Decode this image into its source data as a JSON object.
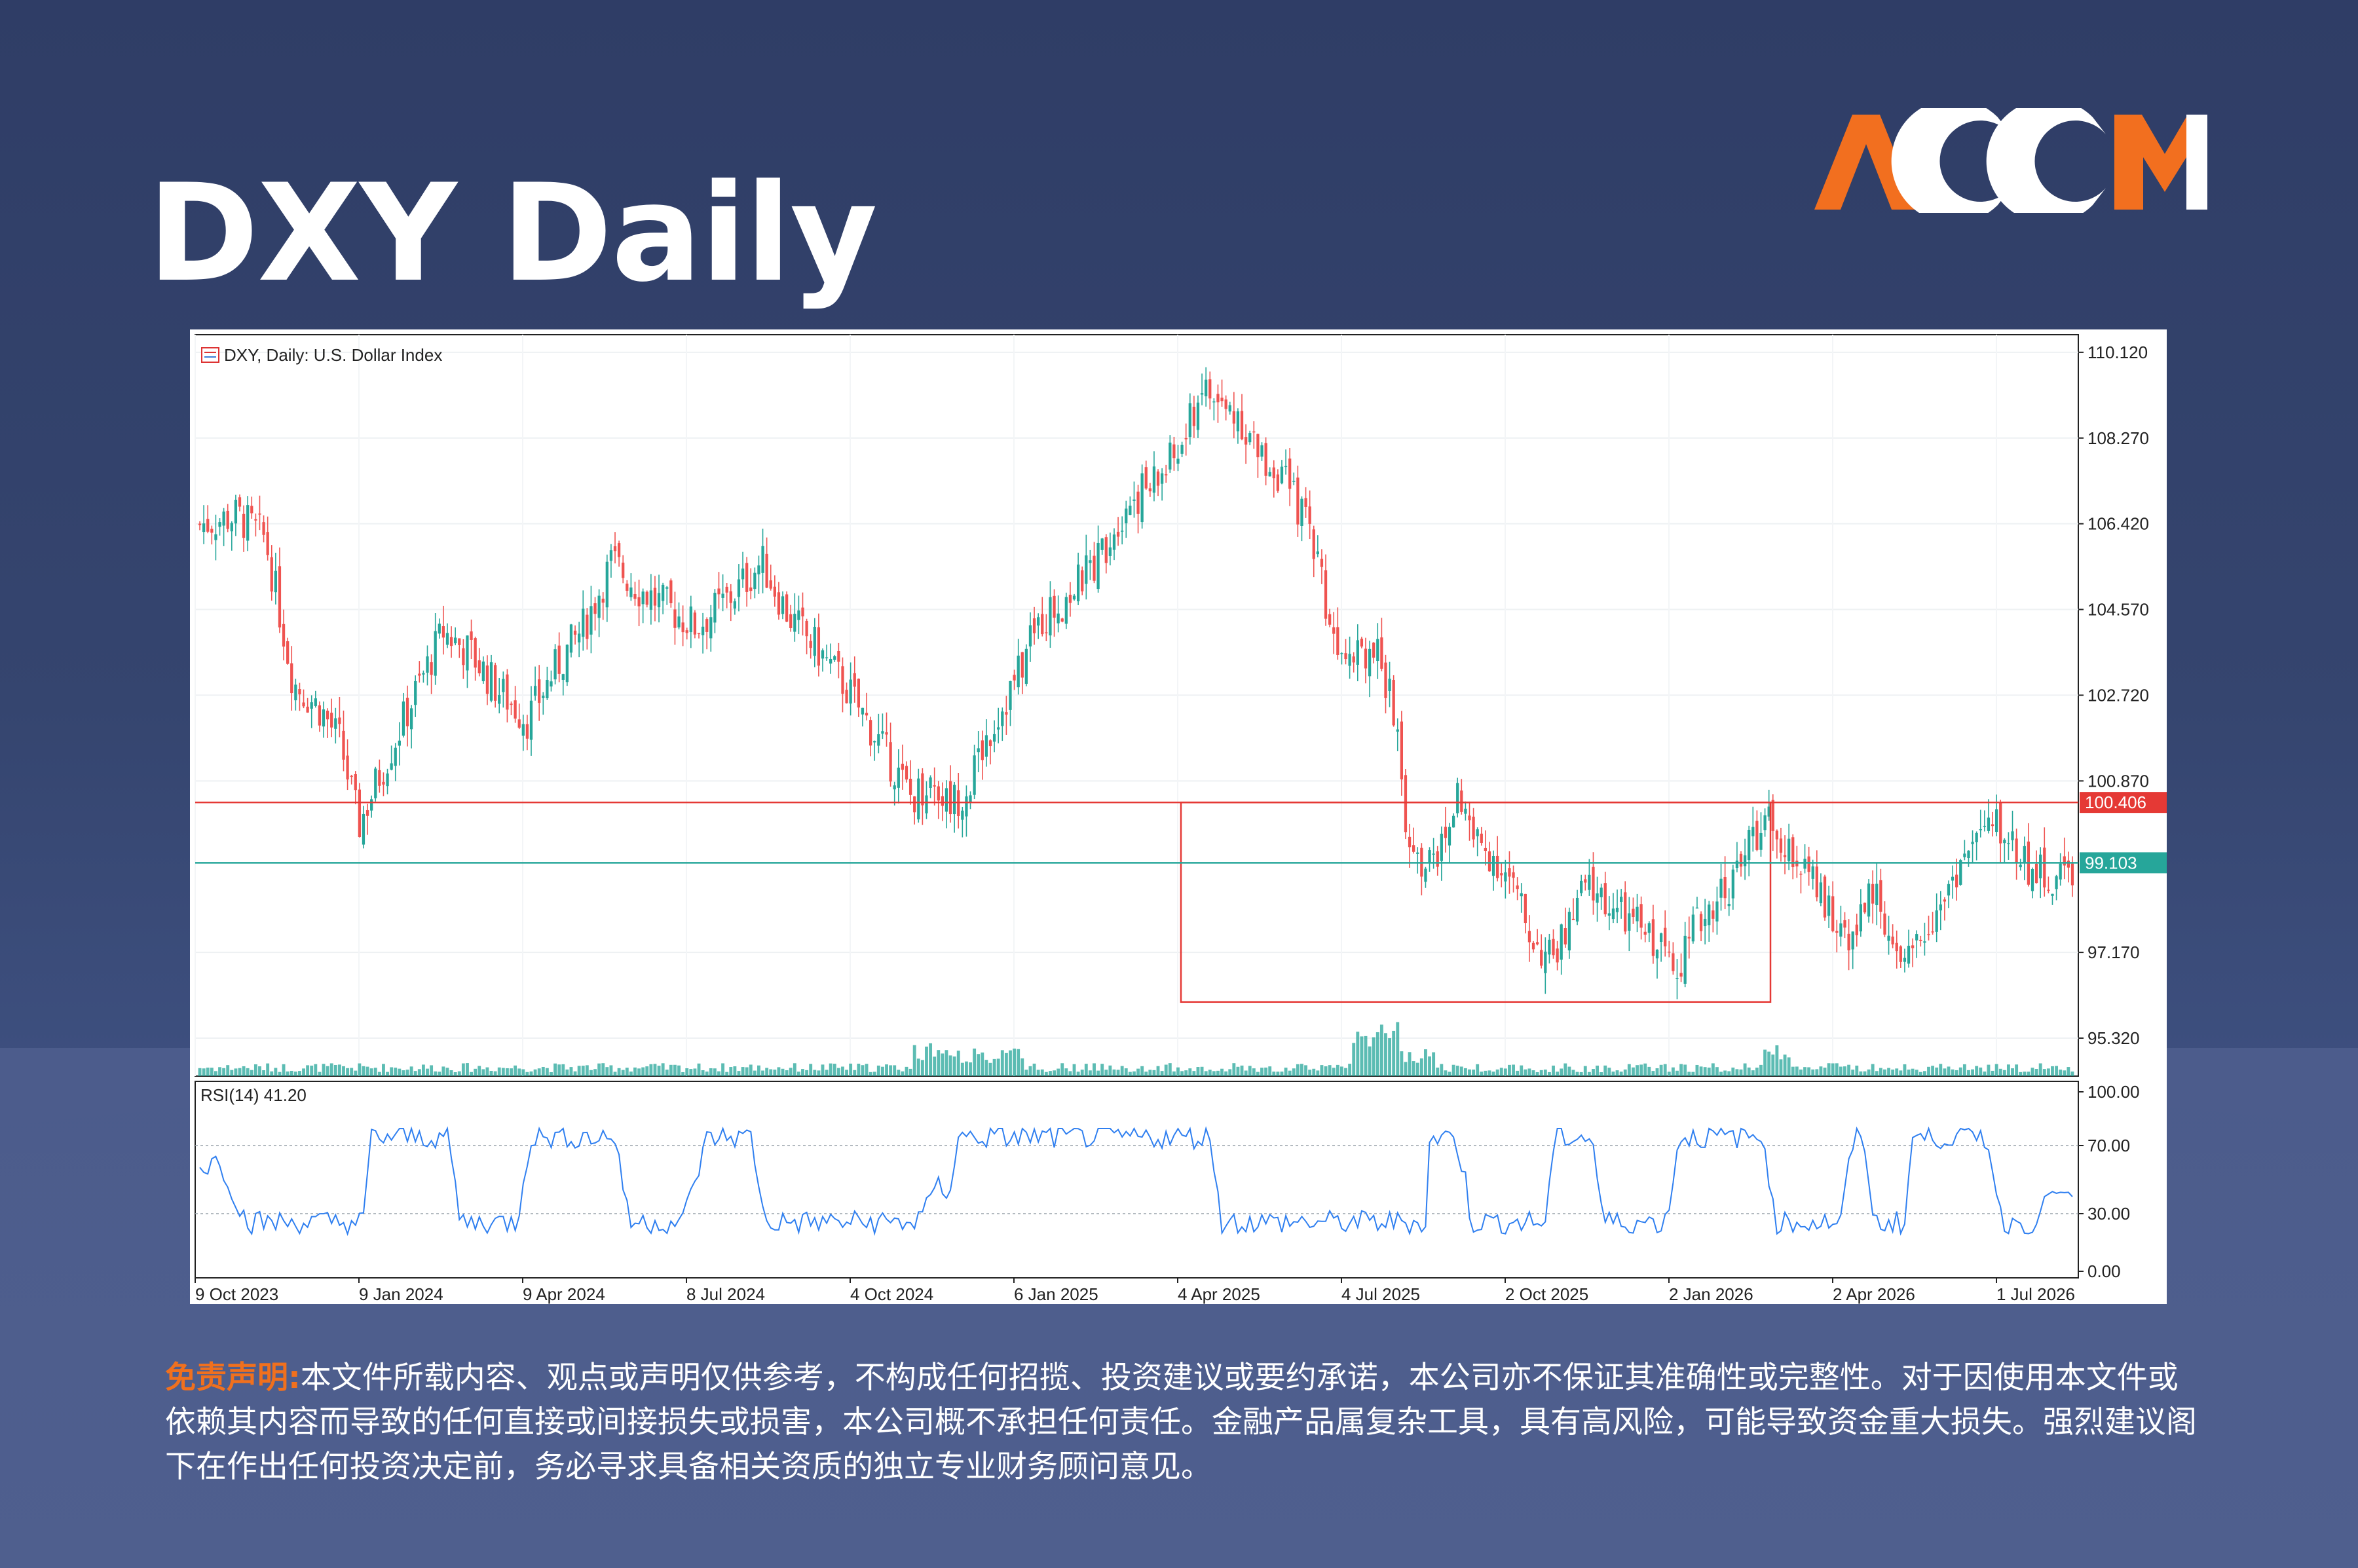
{
  "page": {
    "title": "DXY Daily",
    "logo_text": "ACCM",
    "colors": {
      "background": "#34446f",
      "logo_orange": "#f26f1f",
      "logo_white": "#ffffff",
      "disclaimer_label": "#f0701e"
    }
  },
  "disclaimer": {
    "label": "免责声明:",
    "text": "本文件所载内容、观点或声明仅供参考，不构成任何招揽、投资建议或要约承诺，本公司亦不保证其准确性或完整性。对于因使用本文件或依赖其内容而导致的任何直接或间接损失或损害，本公司概不承担任何责任。金融产品属复杂工具，具有高风险，可能导致资金重大损失。强烈建议阁下在作出任何投资决定前，务必寻求具备相关资质的独立专业财务顾问意见。"
  },
  "chart_data": {
    "type": "candlestick",
    "title": "DXY, Daily:  U.S. Dollar Index",
    "price_axis": {
      "ticks": [
        "110.120",
        "108.270",
        "106.420",
        "104.570",
        "102.720",
        "100.870",
        "97.170",
        "95.320"
      ],
      "ylim": [
        94.5,
        110.5
      ]
    },
    "time_axis": [
      "9 Oct 2023",
      "9 Jan 2024",
      "9 Apr 2024",
      "8 Jul 2024",
      "4 Oct 2024",
      "6 Jan 2025",
      "4 Apr 2025",
      "4 Jul 2025",
      "2 Oct 2025",
      "2 Jan 2026",
      "2 Apr 2026",
      "1 Jul 2026"
    ],
    "colors": {
      "up": "#26a69a",
      "down": "#ef5350",
      "volume": "#26a69a",
      "rsi": "#2f7ff0",
      "resistance": "#e53935",
      "current": "#26a69a",
      "grid": "#e8ecef"
    },
    "close_path": [
      [
        0,
        106.4
      ],
      [
        0.02,
        106.6
      ],
      [
        0.035,
        106.1
      ],
      [
        0.05,
        103.0
      ],
      [
        0.065,
        102.4
      ],
      [
        0.075,
        101.7
      ],
      [
        0.085,
        99.9
      ],
      [
        0.095,
        100.9
      ],
      [
        0.11,
        102.3
      ],
      [
        0.13,
        104.1
      ],
      [
        0.145,
        103.6
      ],
      [
        0.16,
        102.8
      ],
      [
        0.175,
        102.2
      ],
      [
        0.19,
        103.3
      ],
      [
        0.205,
        104.2
      ],
      [
        0.22,
        105.6
      ],
      [
        0.235,
        105.0
      ],
      [
        0.25,
        104.6
      ],
      [
        0.265,
        104.2
      ],
      [
        0.285,
        104.9
      ],
      [
        0.3,
        105.6
      ],
      [
        0.315,
        104.4
      ],
      [
        0.33,
        103.7
      ],
      [
        0.345,
        102.9
      ],
      [
        0.36,
        101.9
      ],
      [
        0.37,
        101.2
      ],
      [
        0.38,
        100.5
      ],
      [
        0.39,
        100.9
      ],
      [
        0.4,
        100.4
      ],
      [
        0.41,
        100.7
      ],
      [
        0.42,
        101.8
      ],
      [
        0.435,
        103.0
      ],
      [
        0.45,
        104.4
      ],
      [
        0.465,
        104.9
      ],
      [
        0.48,
        105.7
      ],
      [
        0.495,
        106.9
      ],
      [
        0.51,
        107.3
      ],
      [
        0.525,
        108.1
      ],
      [
        0.535,
        109.4
      ],
      [
        0.545,
        108.9
      ],
      [
        0.555,
        108.8
      ],
      [
        0.565,
        107.9
      ],
      [
        0.575,
        107.6
      ],
      [
        0.585,
        106.9
      ],
      [
        0.595,
        106.1
      ],
      [
        0.605,
        104.0
      ],
      [
        0.62,
        103.8
      ],
      [
        0.63,
        103.5
      ],
      [
        0.638,
        102.3
      ],
      [
        0.645,
        99.3
      ],
      [
        0.655,
        99.0
      ],
      [
        0.665,
        99.5
      ],
      [
        0.672,
        100.7
      ],
      [
        0.68,
        99.6
      ],
      [
        0.69,
        99.3
      ],
      [
        0.7,
        98.7
      ],
      [
        0.71,
        97.6
      ],
      [
        0.72,
        97.0
      ],
      [
        0.73,
        97.6
      ],
      [
        0.74,
        98.6
      ],
      [
        0.75,
        98.3
      ],
      [
        0.76,
        97.9
      ],
      [
        0.77,
        97.7
      ],
      [
        0.78,
        97.3
      ],
      [
        0.79,
        97.0
      ],
      [
        0.8,
        97.8
      ],
      [
        0.81,
        98.4
      ],
      [
        0.82,
        98.8
      ],
      [
        0.83,
        99.8
      ],
      [
        0.84,
        99.9
      ],
      [
        0.85,
        99.3
      ],
      [
        0.86,
        98.7
      ],
      [
        0.87,
        98.0
      ],
      [
        0.88,
        97.6
      ],
      [
        0.89,
        98.2
      ],
      [
        0.897,
        98.5
      ],
      [
        0.905,
        96.9
      ],
      [
        0.91,
        96.6
      ],
      [
        0.918,
        97.5
      ],
      [
        0.93,
        98.3
      ],
      [
        0.94,
        99.1
      ],
      [
        0.95,
        99.7
      ],
      [
        0.96,
        99.9
      ],
      [
        0.97,
        99.4
      ],
      [
        0.98,
        98.9
      ],
      [
        0.99,
        98.7
      ],
      [
        1.0,
        99.0
      ]
    ],
    "current_price": "99.103",
    "resistance": "100.406",
    "levels": {
      "resistance": 100.406,
      "current": 99.103
    },
    "box": {
      "x0_label": "4 Apr 2025",
      "top": 100.406,
      "bottom": 96.1
    },
    "rsi": {
      "label": "RSI(14) 41.20",
      "value": 41.2,
      "ticks": [
        "100.00",
        "70.00",
        "30.00",
        "0.00"
      ],
      "levels": [
        70,
        30
      ]
    }
  }
}
